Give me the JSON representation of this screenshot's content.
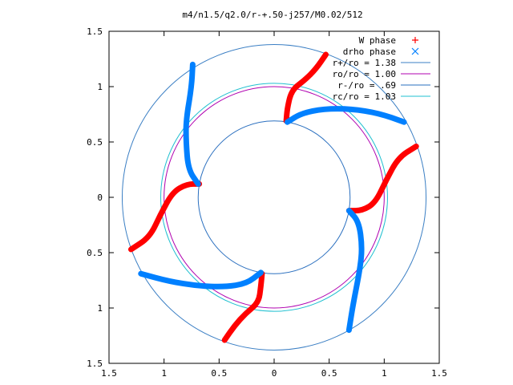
{
  "chart_data": {
    "type": "scatter",
    "title": "m4/n1.5/q2.0/r-+.50-j257/M0.02/512",
    "xlabel": "",
    "ylabel": "",
    "xlim": [
      -1.5,
      1.5
    ],
    "ylim": [
      -1.5,
      1.5
    ],
    "x_ticks": [
      {
        "value": -1.5,
        "label": "1.5"
      },
      {
        "value": -1.0,
        "label": "1"
      },
      {
        "value": -0.5,
        "label": "0.5"
      },
      {
        "value": 0.0,
        "label": "0"
      },
      {
        "value": 0.5,
        "label": "0.5"
      },
      {
        "value": 1.0,
        "label": "1"
      },
      {
        "value": 1.5,
        "label": "1.5"
      }
    ],
    "y_ticks": [
      {
        "value": 1.5,
        "label": "1.5"
      },
      {
        "value": 1.0,
        "label": "1"
      },
      {
        "value": 0.5,
        "label": "0.5"
      },
      {
        "value": 0.0,
        "label": "0"
      },
      {
        "value": -0.5,
        "label": "0.5"
      },
      {
        "value": -1.0,
        "label": "1"
      },
      {
        "value": -1.5,
        "label": "1.5"
      }
    ],
    "grid": false,
    "legend_position": "top-right",
    "legend": [
      {
        "label": "W phase",
        "marker": "+",
        "color": "#ff0000"
      },
      {
        "label": "drho phase",
        "marker": "x",
        "color": "#0080ff"
      },
      {
        "label": "r+/ro = 1.38",
        "marker": "line",
        "color": "#3b7fc4"
      },
      {
        "label": "ro/ro = 1.00",
        "marker": "line",
        "color": "#b000b0"
      },
      {
        "label": "r-/ro = .69",
        "marker": "line",
        "color": "#2a6fbf"
      },
      {
        "label": "rc/ro = 1.03",
        "marker": "line",
        "color": "#20c0d0"
      }
    ],
    "circles": [
      {
        "name": "r+/ro",
        "radius": 1.38,
        "color": "#3b7fc4"
      },
      {
        "name": "ro/ro",
        "radius": 1.0,
        "color": "#b000b0"
      },
      {
        "name": "r-/ro",
        "radius": 0.69,
        "color": "#2a6fbf"
      },
      {
        "name": "rc/ro",
        "radius": 1.03,
        "color": "#20c0d0"
      }
    ],
    "series": [
      {
        "name": "W phase",
        "color": "#ff0000",
        "arms": [
          [
            [
              0.47,
              1.29
            ],
            [
              0.38,
              1.16
            ],
            [
              0.28,
              1.06
            ],
            [
              0.16,
              0.97
            ],
            [
              0.12,
              0.81
            ],
            [
              0.11,
              0.69
            ]
          ],
          [
            [
              -0.45,
              -1.29
            ],
            [
              -0.36,
              -1.16
            ],
            [
              -0.26,
              -1.05
            ],
            [
              -0.14,
              -0.95
            ],
            [
              -0.12,
              -0.8
            ],
            [
              -0.11,
              -0.69
            ]
          ],
          [
            [
              1.29,
              0.46
            ],
            [
              1.13,
              0.36
            ],
            [
              1.02,
              0.16
            ],
            [
              0.92,
              -0.05
            ],
            [
              0.8,
              -0.12
            ],
            [
              0.68,
              -0.12
            ]
          ],
          [
            [
              -1.3,
              -0.47
            ],
            [
              -1.13,
              -0.36
            ],
            [
              -1.03,
              -0.15
            ],
            [
              -0.92,
              0.05
            ],
            [
              -0.79,
              0.12
            ],
            [
              -0.68,
              0.12
            ]
          ]
        ]
      },
      {
        "name": "drho phase",
        "color": "#0080ff",
        "arms": [
          [
            [
              -0.74,
              1.2
            ],
            [
              -0.75,
              1.0
            ],
            [
              -0.8,
              0.7
            ],
            [
              -0.8,
              0.5
            ],
            [
              -0.78,
              0.25
            ],
            [
              -0.69,
              0.12
            ]
          ],
          [
            [
              0.68,
              -1.2
            ],
            [
              0.72,
              -0.95
            ],
            [
              0.78,
              -0.65
            ],
            [
              0.8,
              -0.45
            ],
            [
              0.77,
              -0.22
            ],
            [
              0.68,
              -0.12
            ]
          ],
          [
            [
              1.18,
              0.68
            ],
            [
              0.95,
              0.76
            ],
            [
              0.7,
              0.8
            ],
            [
              0.45,
              0.8
            ],
            [
              0.25,
              0.76
            ],
            [
              0.12,
              0.68
            ]
          ],
          [
            [
              -1.21,
              -0.69
            ],
            [
              -0.95,
              -0.76
            ],
            [
              -0.7,
              -0.8
            ],
            [
              -0.45,
              -0.81
            ],
            [
              -0.25,
              -0.78
            ],
            [
              -0.12,
              -0.68
            ]
          ]
        ]
      }
    ]
  }
}
